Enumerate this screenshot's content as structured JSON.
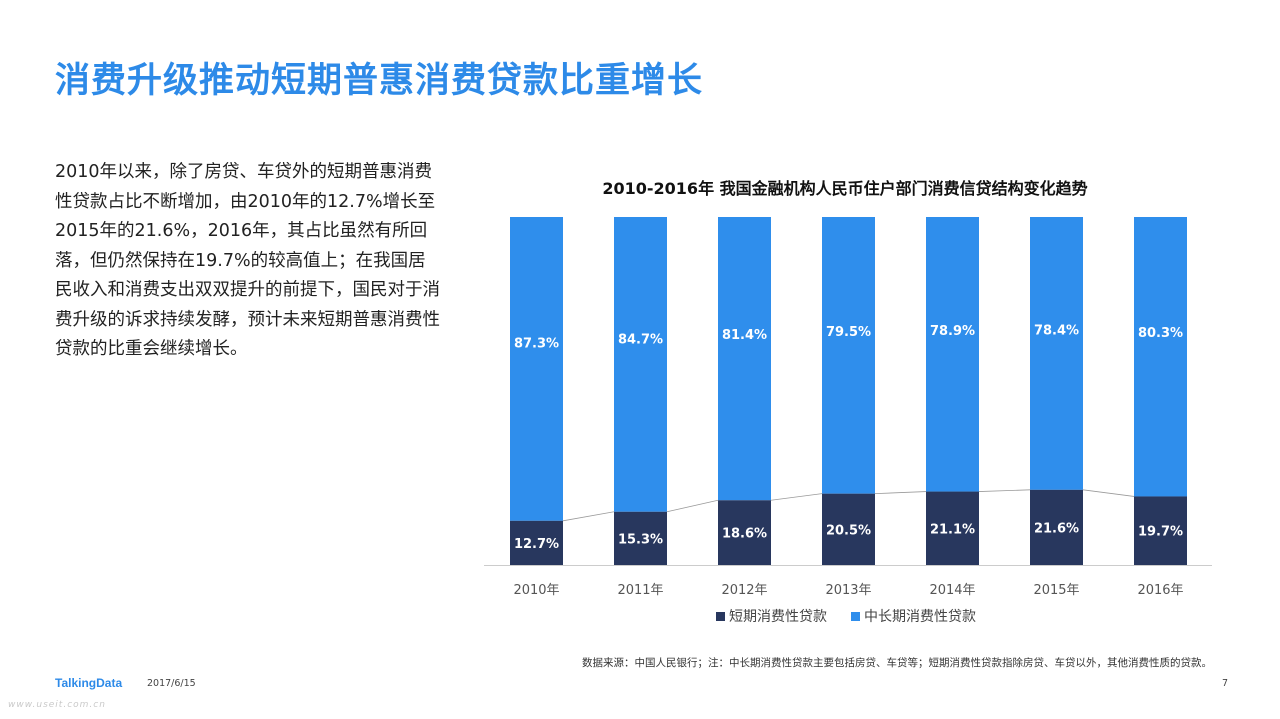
{
  "slide": {
    "title": "消费升级推动短期普惠消费贷款比重增长",
    "body": "2010年以来，除了房贷、车贷外的短期普惠消费性贷款占比不断增加，由2010年的12.7%增长至2015年的21.6%，2016年，其占比虽然有所回落，但仍然保持在19.7%的较高值上；在我国居民收入和消费支出双双提升的前提下，国民对于消费升级的诉求持续发酵，预计未来短期普惠消费性贷款的比重会继续增长。",
    "source": "数据来源：中国人民银行；注：中长期消费性贷款主要包括房贷、车贷等；短期消费性贷款指除房贷、车贷以外，其他消费性质的贷款。"
  },
  "footer": {
    "logo": "TalkingData",
    "date": "2017/6/15",
    "page": "7",
    "watermark": "www.useit.com.cn"
  },
  "colors": {
    "title": "#2d8ae8",
    "short_term": "#28375e",
    "long_term": "#2f8eec",
    "connector": "#9a9a9a",
    "axis": "#cccccc"
  },
  "chart_data": {
    "type": "bar",
    "stacked": true,
    "percent": true,
    "title": "2010-2016年 我国金融机构人民币住户部门消费信贷结构变化趋势",
    "categories": [
      "2010年",
      "2011年",
      "2012年",
      "2013年",
      "2014年",
      "2015年",
      "2016年"
    ],
    "series": [
      {
        "name": "短期消费性贷款",
        "values": [
          12.7,
          15.3,
          18.6,
          20.5,
          21.1,
          21.6,
          19.7
        ],
        "labels": [
          "12.7%",
          "15.3%",
          "18.6%",
          "20.5%",
          "21.1%",
          "21.6%",
          "19.7%"
        ]
      },
      {
        "name": "中长期消费性贷款",
        "values": [
          87.3,
          84.7,
          81.4,
          79.5,
          78.9,
          78.4,
          80.3
        ],
        "labels": [
          "87.3%",
          "84.7%",
          "81.4%",
          "79.5%",
          "78.9%",
          "78.4%",
          "80.3%"
        ]
      }
    ],
    "ylim": [
      0,
      100
    ],
    "legend": "bottom",
    "grid": false
  }
}
